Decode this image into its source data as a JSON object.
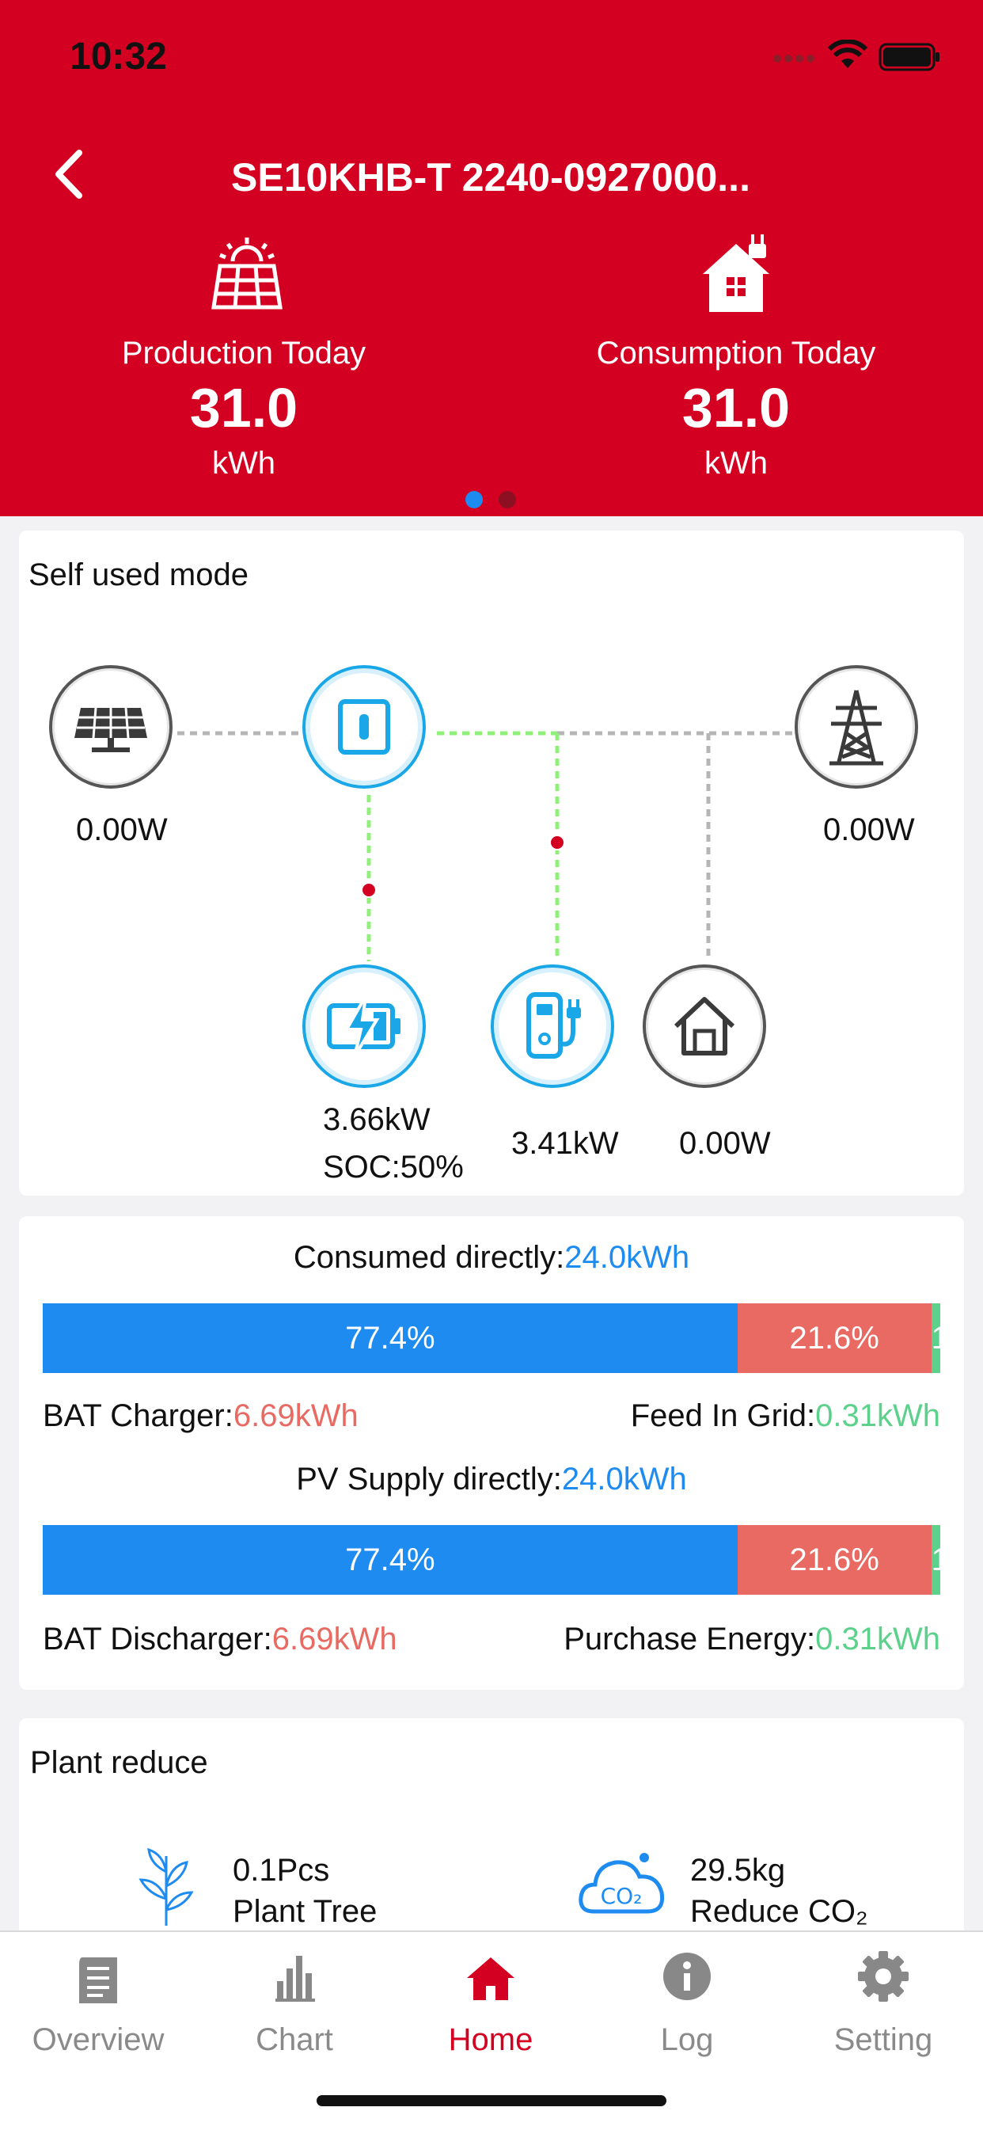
{
  "status_bar": {
    "time": "10:32"
  },
  "header": {
    "title": "SE10KHB-T 2240-0927000...",
    "production": {
      "label": "Production Today",
      "value": "31.0",
      "unit": "kWh"
    },
    "consumption": {
      "label": "Consumption Today",
      "value": "31.0",
      "unit": "kWh"
    }
  },
  "flow": {
    "mode": "Self used mode",
    "pv_power": "0.00W",
    "grid_power": "0.00W",
    "battery_power": "3.66kW",
    "battery_soc": "SOC:50%",
    "charger_power": "3.41kW",
    "home_power": "0.00W"
  },
  "energy": {
    "consumed_label": "Consumed directly:",
    "consumed_value": "24.0kWh",
    "bar1": {
      "blue_label": "77.4%",
      "red_label": "21.6%",
      "green_label": "1",
      "blue_pct": 77.4,
      "red_pct": 21.6,
      "green_pct": 1.0
    },
    "bat_charger_label": "BAT Charger:",
    "bat_charger_value": "6.69kWh",
    "feed_in_label": "Feed In Grid:",
    "feed_in_value": "0.31kWh",
    "pv_supply_label": "PV Supply directly:",
    "pv_supply_value": "24.0kWh",
    "bar2": {
      "blue_label": "77.4%",
      "red_label": "21.6%",
      "green_label": "1",
      "blue_pct": 77.4,
      "red_pct": 21.6,
      "green_pct": 1.0
    },
    "bat_discharger_label": "BAT Discharger:",
    "bat_discharger_value": "6.69kWh",
    "purchase_label": "Purchase Energy:",
    "purchase_value": "0.31kWh"
  },
  "plant_reduce": {
    "title": "Plant reduce",
    "tree_value": "0.1Pcs",
    "tree_label": "Plant Tree",
    "co2_value": "29.5kg",
    "co2_label": "Reduce CO₂",
    "co2_icon_text": "CO₂"
  },
  "tabs": [
    {
      "label": "Overview",
      "icon": "document-icon",
      "active": false
    },
    {
      "label": "Chart",
      "icon": "bar-chart-icon",
      "active": false
    },
    {
      "label": "Home",
      "icon": "home-icon",
      "active": true
    },
    {
      "label": "Log",
      "icon": "info-icon",
      "active": false
    },
    {
      "label": "Setting",
      "icon": "gear-icon",
      "active": false
    }
  ],
  "colors": {
    "brand_red": "#d40021",
    "blue": "#1e8bf0",
    "red": "#e86a62",
    "green": "#5cd18c"
  }
}
